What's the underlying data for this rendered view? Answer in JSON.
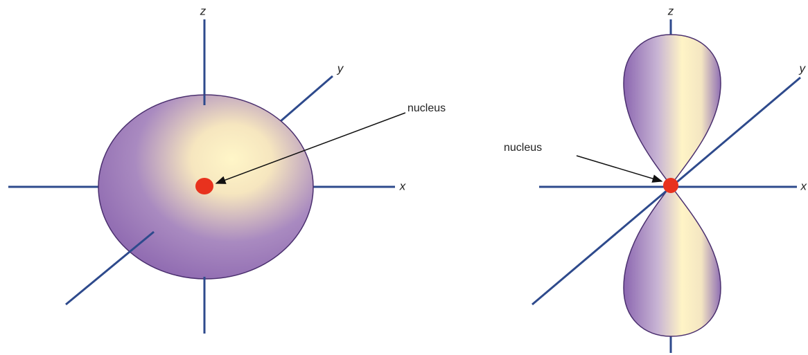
{
  "diagrams": [
    {
      "axis_labels": {
        "z": "z",
        "y": "y",
        "x": "x"
      },
      "nucleus_label": "nucleus"
    },
    {
      "axis_labels": {
        "z": "z",
        "y": "y",
        "x": "x"
      },
      "nucleus_label": "nucleus"
    }
  ]
}
